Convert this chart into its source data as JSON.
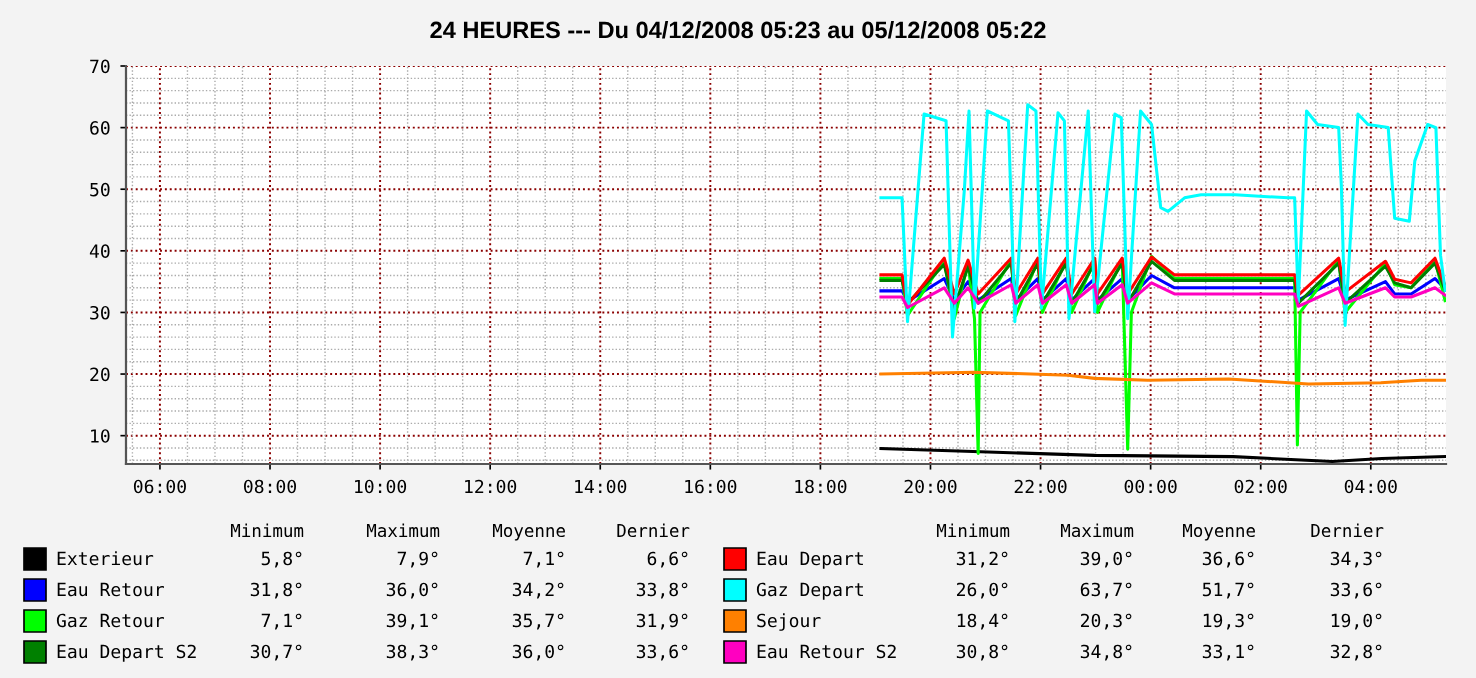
{
  "chart_data": {
    "type": "line",
    "title": "24 HEURES --- Du 04/12/2008 05:23 au 05/12/2008 05:22",
    "xlim": [
      "2008-12-04T05:23",
      "2008-12-05T05:22"
    ],
    "ylim": [
      5.4,
      70
    ],
    "xticks": [
      {
        "value": "2008-12-04T06:00",
        "label": "06:00"
      },
      {
        "value": "2008-12-04T08:00",
        "label": "08:00"
      },
      {
        "value": "2008-12-04T10:00",
        "label": "10:00"
      },
      {
        "value": "2008-12-04T12:00",
        "label": "12:00"
      },
      {
        "value": "2008-12-04T14:00",
        "label": "14:00"
      },
      {
        "value": "2008-12-04T16:00",
        "label": "16:00"
      },
      {
        "value": "2008-12-04T18:00",
        "label": "18:00"
      },
      {
        "value": "2008-12-04T20:00",
        "label": "20:00"
      },
      {
        "value": "2008-12-04T22:00",
        "label": "22:00"
      },
      {
        "value": "2008-12-05T00:00",
        "label": "00:00"
      },
      {
        "value": "2008-12-05T02:00",
        "label": "02:00"
      },
      {
        "value": "2008-12-05T04:00",
        "label": "04:00"
      }
    ],
    "yticks": [
      10,
      20,
      30,
      40,
      50,
      60,
      70
    ],
    "grid": true,
    "legend": "bottom",
    "marker": "none",
    "line_style": "solid",
    "series": [
      {
        "name": "Exterieur",
        "color": "#000000",
        "x": [
          "2008-12-04T19:06",
          "2008-12-04T20:30",
          "2008-12-04T22:59",
          "2008-12-05T01:30",
          "2008-12-05T03:18",
          "2008-12-05T04:12",
          "2008-12-05T05:21"
        ],
        "values": [
          7.9,
          7.5,
          6.8,
          6.6,
          5.8,
          6.3,
          6.6
        ]
      },
      {
        "name": "Eau Retour",
        "color": "#0000ff",
        "x": [
          "2008-12-04T19:06",
          "2008-12-04T19:29",
          "2008-12-04T19:35",
          "2008-12-04T20:15",
          "2008-12-04T20:26",
          "2008-12-04T20:41",
          "2008-12-04T20:52",
          "2008-12-04T21:28",
          "2008-12-04T21:33",
          "2008-12-04T21:57",
          "2008-12-04T22:02",
          "2008-12-04T22:28",
          "2008-12-04T22:34",
          "2008-12-04T22:59",
          "2008-12-04T23:02",
          "2008-12-04T23:29",
          "2008-12-04T23:35",
          "2008-12-05T00:01",
          "2008-12-05T00:26",
          "2008-12-05T02:37",
          "2008-12-05T02:41",
          "2008-12-05T03:25",
          "2008-12-05T03:32",
          "2008-12-05T04:16",
          "2008-12-05T04:26",
          "2008-12-05T04:44",
          "2008-12-05T05:10",
          "2008-12-05T05:21"
        ],
        "values": [
          33.5,
          33.5,
          31.8,
          35.5,
          32.0,
          35.0,
          32.0,
          35.5,
          32.0,
          35.5,
          32.0,
          35.5,
          32.0,
          35.5,
          32.0,
          35.5,
          32.0,
          36.0,
          34.0,
          34.0,
          32.0,
          35.5,
          32.0,
          35.0,
          33.0,
          33.0,
          35.5,
          33.8
        ]
      },
      {
        "name": "Gaz Retour",
        "color": "#00ff00",
        "x": [
          "2008-12-04T19:06",
          "2008-12-04T19:29",
          "2008-12-04T19:35",
          "2008-12-04T20:15",
          "2008-12-04T20:26",
          "2008-12-04T20:41",
          "2008-12-04T20:48",
          "2008-12-04T20:52",
          "2008-12-04T20:54",
          "2008-12-04T21:28",
          "2008-12-04T21:33",
          "2008-12-04T21:57",
          "2008-12-04T22:02",
          "2008-12-04T22:28",
          "2008-12-04T22:34",
          "2008-12-04T22:59",
          "2008-12-04T23:02",
          "2008-12-04T23:29",
          "2008-12-04T23:35",
          "2008-12-04T23:39",
          "2008-12-05T00:01",
          "2008-12-05T00:26",
          "2008-12-05T02:37",
          "2008-12-05T02:40",
          "2008-12-05T02:43",
          "2008-12-05T03:25",
          "2008-12-05T03:32",
          "2008-12-05T04:16",
          "2008-12-05T04:26",
          "2008-12-05T04:44",
          "2008-12-05T05:10",
          "2008-12-05T05:21"
        ],
        "values": [
          35.5,
          35.5,
          29.5,
          38.5,
          29.0,
          38.0,
          29.0,
          7.1,
          30.0,
          38.5,
          29.5,
          38.5,
          30.0,
          38.5,
          30.0,
          38.5,
          30.0,
          38.5,
          7.8,
          30.0,
          39.1,
          35.5,
          35.5,
          8.5,
          30.0,
          38.5,
          30.0,
          38.0,
          34.5,
          34.0,
          38.5,
          31.9
        ]
      },
      {
        "name": "Eau Depart S2",
        "color": "#008000",
        "x": [
          "2008-12-04T19:06",
          "2008-12-04T19:29",
          "2008-12-04T19:35",
          "2008-12-04T20:15",
          "2008-12-04T20:26",
          "2008-12-04T20:41",
          "2008-12-04T20:52",
          "2008-12-04T21:28",
          "2008-12-04T21:33",
          "2008-12-04T21:57",
          "2008-12-04T22:02",
          "2008-12-04T22:28",
          "2008-12-04T22:34",
          "2008-12-04T22:59",
          "2008-12-04T23:02",
          "2008-12-04T23:29",
          "2008-12-04T23:35",
          "2008-12-05T00:01",
          "2008-12-05T00:26",
          "2008-12-05T02:37",
          "2008-12-05T02:41",
          "2008-12-05T03:25",
          "2008-12-05T03:32",
          "2008-12-05T04:16",
          "2008-12-05T04:26",
          "2008-12-05T04:44",
          "2008-12-05T05:10",
          "2008-12-05T05:21"
        ],
        "values": [
          35.2,
          35.2,
          31.5,
          37.8,
          30.7,
          37.5,
          31.5,
          38.0,
          31.5,
          38.0,
          31.5,
          38.0,
          31.5,
          38.0,
          31.5,
          38.0,
          31.5,
          38.3,
          35.2,
          35.2,
          31.5,
          38.0,
          31.5,
          37.5,
          34.8,
          34.0,
          38.0,
          33.6
        ]
      },
      {
        "name": "Eau Depart",
        "color": "#ff0000",
        "x": [
          "2008-12-04T19:06",
          "2008-12-04T19:29",
          "2008-12-04T19:35",
          "2008-12-04T20:15",
          "2008-12-04T20:26",
          "2008-12-04T20:41",
          "2008-12-04T20:52",
          "2008-12-04T21:28",
          "2008-12-04T21:33",
          "2008-12-04T21:57",
          "2008-12-04T22:02",
          "2008-12-04T22:28",
          "2008-12-04T22:34",
          "2008-12-04T22:59",
          "2008-12-04T23:02",
          "2008-12-04T23:29",
          "2008-12-04T23:35",
          "2008-12-05T00:01",
          "2008-12-05T00:26",
          "2008-12-05T02:37",
          "2008-12-05T02:41",
          "2008-12-05T03:25",
          "2008-12-05T03:32",
          "2008-12-05T04:16",
          "2008-12-05T04:26",
          "2008-12-05T04:44",
          "2008-12-05T05:10",
          "2008-12-05T05:21"
        ],
        "values": [
          36.1,
          36.1,
          31.2,
          38.8,
          33.0,
          38.5,
          33.0,
          38.8,
          33.0,
          38.8,
          33.0,
          38.8,
          33.0,
          38.8,
          33.0,
          38.8,
          33.0,
          39.0,
          36.1,
          36.1,
          32.8,
          38.8,
          33.3,
          38.3,
          35.4,
          34.8,
          38.8,
          34.3
        ]
      },
      {
        "name": "Gaz Depart",
        "color": "#00ffff",
        "x": [
          "2008-12-04T19:06",
          "2008-12-04T19:29",
          "2008-12-04T19:35",
          "2008-12-04T19:53",
          "2008-12-04T20:17",
          "2008-12-04T20:24",
          "2008-12-04T20:37",
          "2008-12-04T20:42",
          "2008-12-04T20:48",
          "2008-12-04T21:02",
          "2008-12-04T21:25",
          "2008-12-04T21:32",
          "2008-12-04T21:46",
          "2008-12-04T21:55",
          "2008-12-04T22:01",
          "2008-12-04T22:19",
          "2008-12-04T22:26",
          "2008-12-04T22:31",
          "2008-12-04T22:52",
          "2008-12-04T22:59",
          "2008-12-04T23:21",
          "2008-12-04T23:28",
          "2008-12-04T23:35",
          "2008-12-04T23:49",
          "2008-12-05T00:01",
          "2008-12-05T00:11",
          "2008-12-05T00:19",
          "2008-12-05T00:37",
          "2008-12-05T00:55",
          "2008-12-05T01:32",
          "2008-12-05T02:30",
          "2008-12-05T02:37",
          "2008-12-05T02:41",
          "2008-12-05T02:50",
          "2008-12-05T03:02",
          "2008-12-05T03:25",
          "2008-12-05T03:28",
          "2008-12-05T03:32",
          "2008-12-05T03:46",
          "2008-12-05T03:57",
          "2008-12-05T04:19",
          "2008-12-05T04:26",
          "2008-12-05T04:42",
          "2008-12-05T04:48",
          "2008-12-05T05:02",
          "2008-12-05T05:11",
          "2008-12-05T05:16",
          "2008-12-05T05:21"
        ],
        "values": [
          48.6,
          48.6,
          28.5,
          62.2,
          61.1,
          26.0,
          50.0,
          62.7,
          30.7,
          62.7,
          61.1,
          28.5,
          63.7,
          62.7,
          30.7,
          62.4,
          61.1,
          29.0,
          62.7,
          30.1,
          62.2,
          61.6,
          29.0,
          62.7,
          60.5,
          47.0,
          46.4,
          48.6,
          49.1,
          49.1,
          48.6,
          48.6,
          31.7,
          62.7,
          60.5,
          60.0,
          50.2,
          27.9,
          62.2,
          60.5,
          60.0,
          45.3,
          44.8,
          54.6,
          60.5,
          60.0,
          39.3,
          33.6
        ]
      },
      {
        "name": "Sejour",
        "color": "#ff8000",
        "x": [
          "2008-12-04T19:06",
          "2008-12-04T20:48",
          "2008-12-04T22:30",
          "2008-12-04T22:59",
          "2008-12-04T23:57",
          "2008-12-05T01:25",
          "2008-12-05T02:08",
          "2008-12-05T02:52",
          "2008-12-05T04:11",
          "2008-12-05T04:55",
          "2008-12-05T05:21"
        ],
        "values": [
          20.0,
          20.3,
          19.8,
          19.3,
          19.0,
          19.2,
          18.8,
          18.4,
          18.6,
          19.0,
          19.0
        ]
      },
      {
        "name": "Eau Retour S2",
        "color": "#ff00c0",
        "x": [
          "2008-12-04T19:06",
          "2008-12-04T19:29",
          "2008-12-04T19:35",
          "2008-12-04T20:15",
          "2008-12-04T20:26",
          "2008-12-04T20:41",
          "2008-12-04T20:52",
          "2008-12-04T21:28",
          "2008-12-04T21:33",
          "2008-12-04T21:57",
          "2008-12-04T22:02",
          "2008-12-04T22:28",
          "2008-12-04T22:34",
          "2008-12-04T22:59",
          "2008-12-04T23:02",
          "2008-12-04T23:29",
          "2008-12-04T23:35",
          "2008-12-05T00:01",
          "2008-12-05T00:26",
          "2008-12-05T02:37",
          "2008-12-05T02:41",
          "2008-12-05T03:25",
          "2008-12-05T03:32",
          "2008-12-05T04:16",
          "2008-12-05T04:26",
          "2008-12-05T04:44",
          "2008-12-05T05:10",
          "2008-12-05T05:21"
        ],
        "values": [
          32.5,
          32.5,
          30.8,
          34.0,
          31.5,
          34.0,
          31.5,
          34.5,
          31.5,
          34.5,
          31.5,
          34.5,
          31.5,
          34.5,
          31.5,
          34.5,
          31.5,
          34.8,
          33.0,
          33.0,
          31.0,
          34.0,
          31.5,
          34.0,
          32.5,
          32.5,
          34.0,
          32.8
        ]
      }
    ],
    "annotations": [
      "Minimum",
      "Maximum",
      "Moyenne",
      "Dernier",
      "Minimum",
      "Maximum",
      "Moyenne",
      "Dernier",
      "5,8°",
      "7,9°",
      "7,1°",
      "6,6°",
      "31,8°",
      "36,0°",
      "34,2°",
      "33,8°",
      "7,1°",
      "39,1°",
      "35,7°",
      "31,9°",
      "30,7°",
      "38,3°",
      "36,0°",
      "33,6°",
      "31,2°",
      "39,0°",
      "36,6°",
      "34,3°",
      "26,0°",
      "63,7°",
      "51,7°",
      "33,6°",
      "18,4°",
      "20,3°",
      "19,3°",
      "19,0°",
      "30,8°",
      "34,8°",
      "33,1°",
      "32,8°"
    ]
  }
}
